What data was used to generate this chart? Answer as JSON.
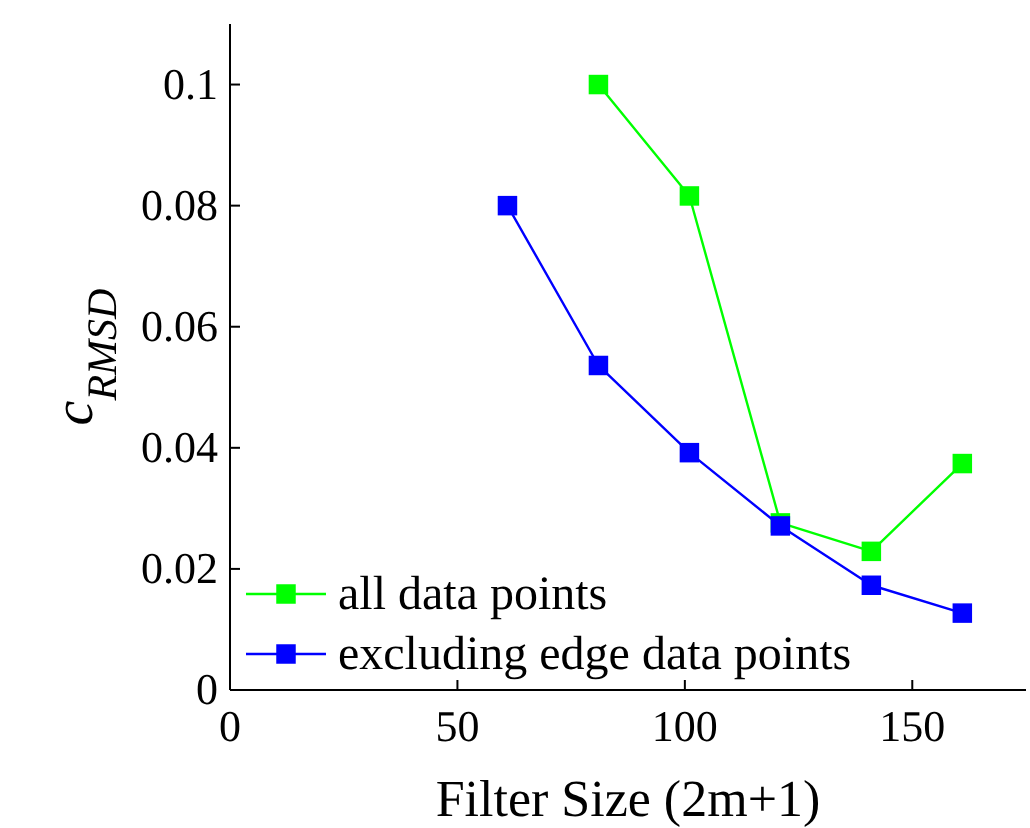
{
  "chart_data": {
    "type": "line",
    "xlabel": "Filter Size (2m+1)",
    "ylabel": "c$_{RMSD}$",
    "xlim": [
      0,
      175
    ],
    "xticks": [
      0,
      50,
      100,
      150
    ],
    "ylim": [
      0,
      0.11
    ],
    "yticks": [
      0,
      0.02,
      0.04,
      0.06,
      0.08,
      0.1
    ],
    "marker": "square",
    "line_style": "solid",
    "grid": false,
    "legend": "bottom left",
    "series": [
      {
        "name": "all data points",
        "color": "#00ff00",
        "x": [
          81,
          101,
          121,
          141,
          161
        ],
        "values": [
          0.1,
          0.0816,
          0.0276,
          0.0229,
          0.0374
        ]
      },
      {
        "name": "excluding edge data points",
        "color": "#0000ff",
        "x": [
          61,
          81,
          101,
          121,
          141,
          161
        ],
        "values": [
          0.08,
          0.0536,
          0.0392,
          0.0271,
          0.0173,
          0.0127
        ]
      }
    ]
  }
}
